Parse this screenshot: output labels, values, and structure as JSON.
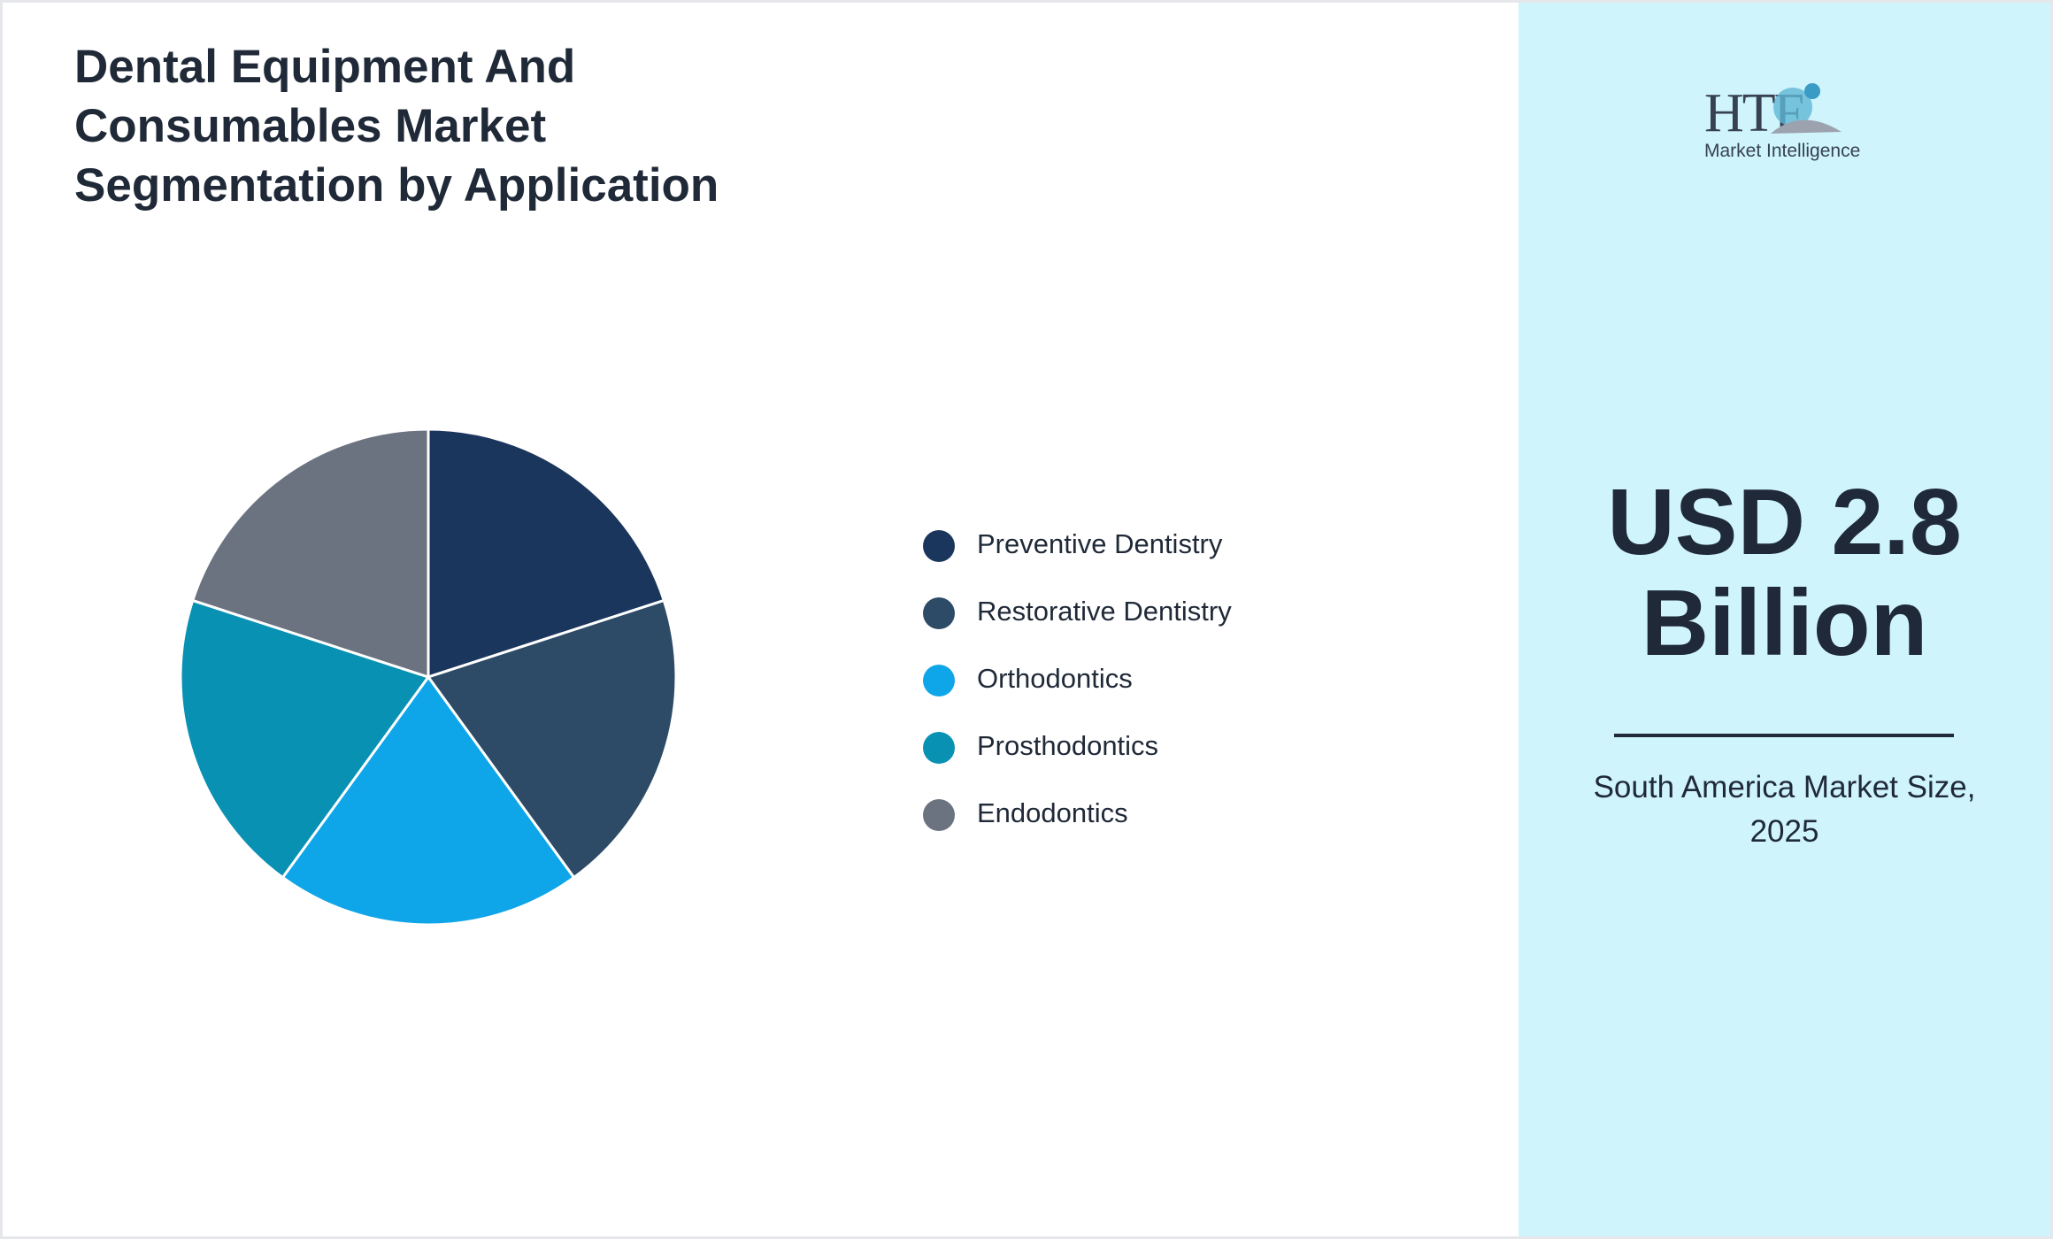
{
  "chart_data": {
    "type": "pie",
    "title": "Dental Equipment And Consumables Market Segmentation by Application",
    "categories": [
      "Preventive Dentistry",
      "Restorative Dentistry",
      "Orthodontics",
      "Prosthodontics",
      "Endodontics"
    ],
    "values": [
      20,
      20,
      20,
      20,
      20
    ],
    "colors": [
      "#1b365d",
      "#2d4a66",
      "#0ea5e9",
      "#0891b2",
      "#6b7280"
    ]
  },
  "logo": {
    "brand": "HTF",
    "tagline": "Market Intelligence"
  },
  "panel": {
    "value": "USD 2.8 Billion",
    "caption": "South America Market Size, 2025"
  }
}
